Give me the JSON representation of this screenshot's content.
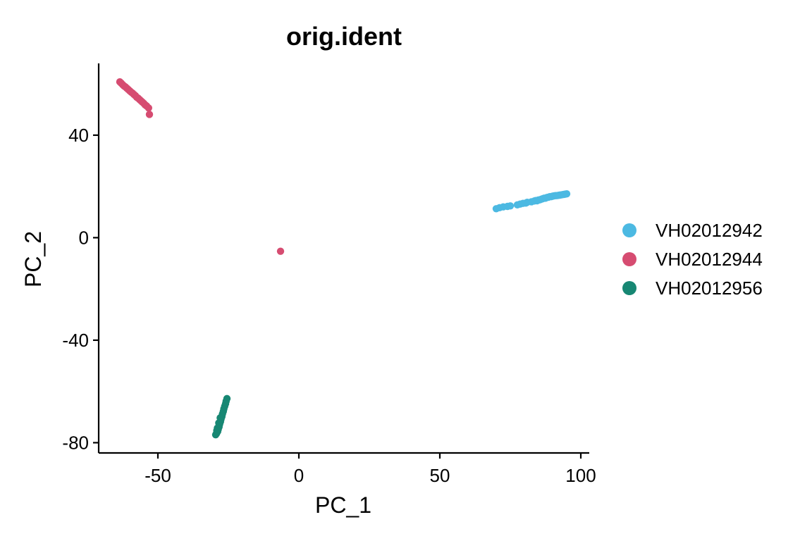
{
  "chart_data": {
    "type": "scatter",
    "title": "orig.ident",
    "xlabel": "PC_1",
    "ylabel": "PC_2",
    "xlim": [
      -71,
      103
    ],
    "ylim": [
      -84,
      68
    ],
    "xticks": [
      -50,
      0,
      50,
      100
    ],
    "yticks": [
      40,
      0,
      -40,
      -80
    ],
    "grid": false,
    "legend_position": "right",
    "series": [
      {
        "name": "VH02012942",
        "color": "#4CB9E2",
        "points": [
          [
            70,
            11.3
          ],
          [
            71.2,
            11.7
          ],
          [
            72.5,
            12.0
          ],
          [
            74,
            12.2
          ],
          [
            75,
            12.4
          ],
          [
            77.5,
            12.8
          ],
          [
            78.5,
            13.1
          ],
          [
            79.5,
            13.4
          ],
          [
            80.5,
            13.5
          ],
          [
            81,
            13.8
          ],
          [
            82.5,
            14.0
          ],
          [
            83.5,
            14.3
          ],
          [
            84,
            14.5
          ],
          [
            84.5,
            14.4
          ],
          [
            85,
            14.7
          ],
          [
            85.5,
            14.8
          ],
          [
            86,
            15.0
          ],
          [
            86.5,
            15.2
          ],
          [
            87,
            15.4
          ],
          [
            87.5,
            15.4
          ],
          [
            88,
            15.7
          ],
          [
            88.5,
            15.8
          ],
          [
            89,
            16.0
          ],
          [
            89.5,
            16.0
          ],
          [
            90,
            16.2
          ],
          [
            90.5,
            16.3
          ],
          [
            91,
            16.4
          ],
          [
            91.5,
            16.4
          ],
          [
            92,
            16.5
          ],
          [
            92.5,
            16.6
          ],
          [
            93,
            16.7
          ],
          [
            93.5,
            16.8
          ],
          [
            94,
            16.9
          ],
          [
            94.5,
            17.0
          ],
          [
            95,
            17.1
          ]
        ]
      },
      {
        "name": "VH02012944",
        "color": "#D64C71",
        "points": [
          [
            -63.5,
            60.8
          ],
          [
            -63,
            60.3
          ],
          [
            -62.5,
            59.7
          ],
          [
            -62,
            59.2
          ],
          [
            -61.5,
            58.8
          ],
          [
            -61,
            58.3
          ],
          [
            -60.5,
            57.8
          ],
          [
            -60,
            57.3
          ],
          [
            -59.5,
            56.8
          ],
          [
            -59,
            56.4
          ],
          [
            -58.5,
            55.9
          ],
          [
            -58,
            55.4
          ],
          [
            -57.5,
            54.8
          ],
          [
            -57,
            54.4
          ],
          [
            -56.5,
            53.9
          ],
          [
            -56,
            53.4
          ],
          [
            -55.5,
            52.9
          ],
          [
            -55,
            52.4
          ],
          [
            -54.5,
            51.8
          ],
          [
            -54,
            51.4
          ],
          [
            -53.3,
            50.6
          ],
          [
            -53,
            48.1
          ],
          [
            -6.5,
            -5.3
          ]
        ]
      },
      {
        "name": "VH02012956",
        "color": "#178773",
        "points": [
          [
            -25.5,
            -62.8
          ],
          [
            -25.8,
            -63.8
          ],
          [
            -26,
            -64.8
          ],
          [
            -26.3,
            -65.8
          ],
          [
            -26.6,
            -66.8
          ],
          [
            -26.8,
            -67.8
          ],
          [
            -27.1,
            -68.8
          ],
          [
            -27.3,
            -69.8
          ],
          [
            -27.6,
            -70.8
          ],
          [
            -27.8,
            -71.8
          ],
          [
            -28.1,
            -72.8
          ],
          [
            -28.3,
            -73.8
          ],
          [
            -28.6,
            -74.8
          ],
          [
            -28.8,
            -75.6
          ],
          [
            -29.2,
            -76.4
          ],
          [
            -29.5,
            -76.9
          ],
          [
            -27.9,
            -70.3
          ],
          [
            -28.4,
            -72.3
          ],
          [
            -28.9,
            -74.3
          ],
          [
            -29.1,
            -75.3
          ]
        ]
      }
    ]
  }
}
